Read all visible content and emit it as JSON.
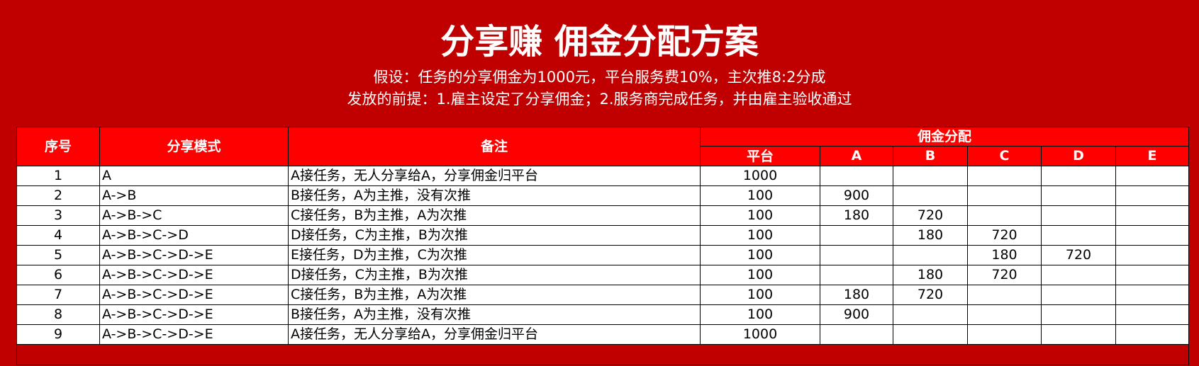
{
  "title": "分享赚 佣金分配方案",
  "subtitle_1": "假设：任务的分享佣金为1000元，平台服务费10%，主次推8:2分成",
  "subtitle_2": "发放的前提：1.雇主设定了分享佣金；2.服务商完成任务，并由雇主验收通过",
  "colors": {
    "background": "#c00000",
    "header": "#ff0000"
  },
  "table": {
    "headers": {
      "seq": "序号",
      "mode": "分享模式",
      "note": "备注",
      "group": "佣金分配",
      "sub": [
        "平台",
        "A",
        "B",
        "C",
        "D",
        "E"
      ]
    },
    "rows": [
      {
        "seq": "1",
        "mode": "A",
        "note": "A接任务，无人分享给A，分享佣金归平台",
        "values": [
          "1000",
          "",
          "",
          "",
          "",
          ""
        ]
      },
      {
        "seq": "2",
        "mode": "A->B",
        "note": "B接任务，A为主推，没有次推",
        "values": [
          "100",
          "900",
          "",
          "",
          "",
          ""
        ]
      },
      {
        "seq": "3",
        "mode": "A->B->C",
        "note": "C接任务，B为主推，A为次推",
        "values": [
          "100",
          "180",
          "720",
          "",
          "",
          ""
        ]
      },
      {
        "seq": "4",
        "mode": "A->B->C->D",
        "note": "D接任务，C为主推，B为次推",
        "values": [
          "100",
          "",
          "180",
          "720",
          "",
          ""
        ]
      },
      {
        "seq": "5",
        "mode": "A->B->C->D->E",
        "note": "E接任务，D为主推，C为次推",
        "values": [
          "100",
          "",
          "",
          "180",
          "720",
          ""
        ]
      },
      {
        "seq": "6",
        "mode": "A->B->C->D->E",
        "note": "D接任务，C为主推，B为次推",
        "values": [
          "100",
          "",
          "180",
          "720",
          "",
          ""
        ]
      },
      {
        "seq": "7",
        "mode": "A->B->C->D->E",
        "note": "C接任务，B为主推，A为次推",
        "values": [
          "100",
          "180",
          "720",
          "",
          "",
          ""
        ]
      },
      {
        "seq": "8",
        "mode": "A->B->C->D->E",
        "note": "B接任务，A为主推，没有次推",
        "values": [
          "100",
          "900",
          "",
          "",
          "",
          ""
        ]
      },
      {
        "seq": "9",
        "mode": "A->B->C->D->E",
        "note": "A接任务，无人分享给A，分享佣金归平台",
        "values": [
          "1000",
          "",
          "",
          "",
          "",
          ""
        ]
      }
    ]
  }
}
